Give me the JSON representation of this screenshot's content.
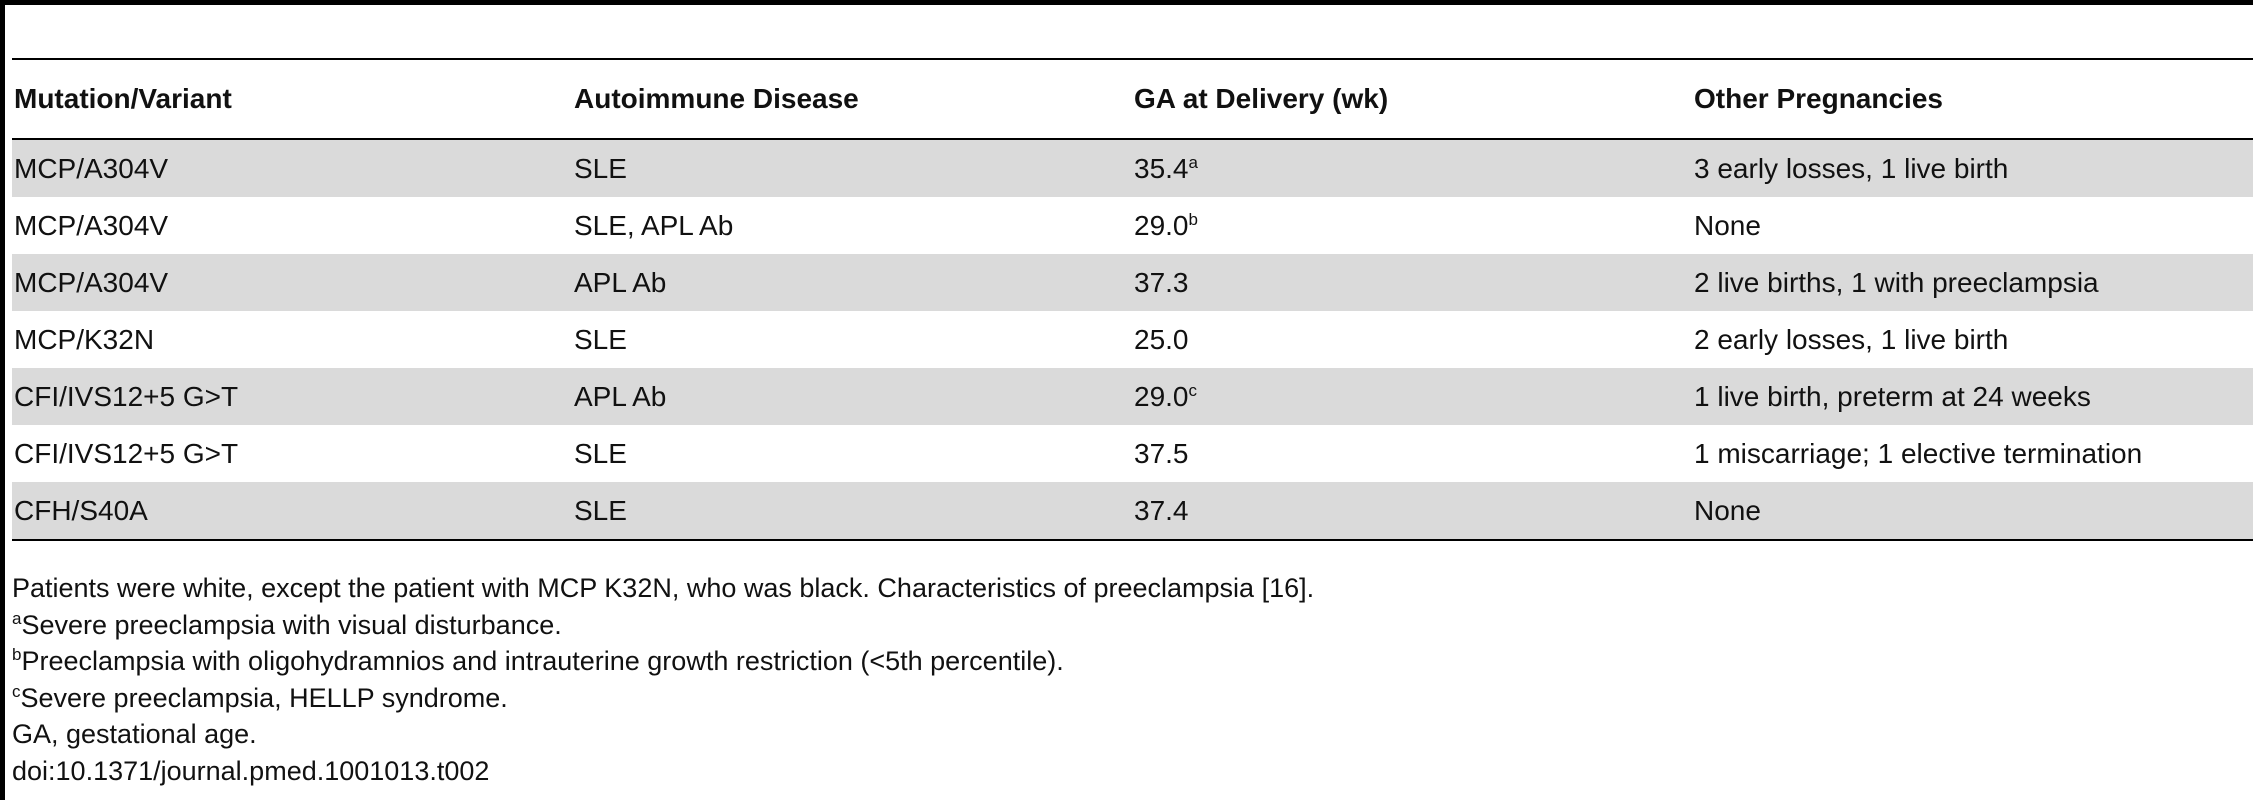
{
  "table": {
    "headers": [
      "Mutation/Variant",
      "Autoimmune Disease",
      "GA at Delivery (wk)",
      "Other Pregnancies"
    ],
    "rows": [
      {
        "variant": "MCP/A304V",
        "disease": "SLE",
        "ga": "35.4",
        "ga_note": "a",
        "other": "3 early losses, 1 live birth"
      },
      {
        "variant": "MCP/A304V",
        "disease": "SLE, APL Ab",
        "ga": "29.0",
        "ga_note": "b",
        "other": "None"
      },
      {
        "variant": "MCP/A304V",
        "disease": "APL Ab",
        "ga": "37.3",
        "ga_note": "",
        "other": "2 live births, 1 with preeclampsia"
      },
      {
        "variant": "MCP/K32N",
        "disease": "SLE",
        "ga": "25.0",
        "ga_note": "",
        "other": "2 early losses, 1 live birth"
      },
      {
        "variant": "CFI/IVS12+5 G>T",
        "disease": "APL Ab",
        "ga": "29.0",
        "ga_note": "c",
        "other": "1 live birth, preterm at 24 weeks"
      },
      {
        "variant": "CFI/IVS12+5 G>T",
        "disease": "SLE",
        "ga": "37.5",
        "ga_note": "",
        "other": "1 miscarriage; 1 elective termination"
      },
      {
        "variant": "CFH/S40A",
        "disease": "SLE",
        "ga": "37.4",
        "ga_note": "",
        "other": "None"
      }
    ]
  },
  "footnotes": {
    "main": "Patients were white, except the patient with MCP K32N, who was black. Characteristics of preeclampsia [16].",
    "a": {
      "mark": "a",
      "text": "Severe preeclampsia with visual disturbance."
    },
    "b": {
      "mark": "b",
      "text": "Preeclampsia with oligohydramnios and intrauterine growth restriction (<5th percentile)."
    },
    "c": {
      "mark": "c",
      "text": "Severe preeclampsia, HELLP syndrome."
    },
    "abbrev": "GA, gestational age.",
    "doi": "doi:10.1371/journal.pmed.1001013.t002"
  },
  "colors": {
    "stripe": "#dadada",
    "rule": "#000000"
  }
}
